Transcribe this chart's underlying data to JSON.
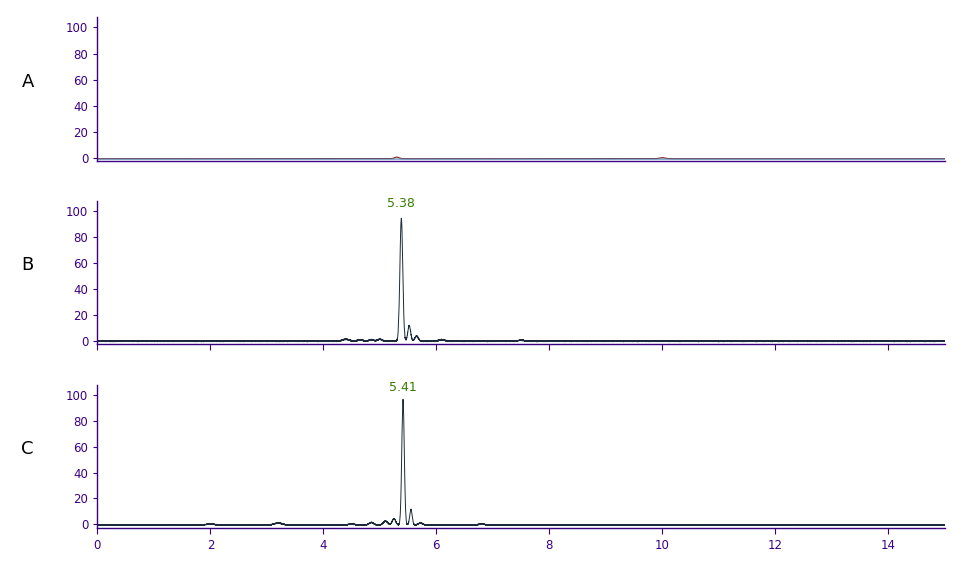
{
  "panel_labels": [
    "A",
    "B",
    "C"
  ],
  "xlim": [
    0,
    15
  ],
  "xticks": [
    0,
    2,
    4,
    6,
    8,
    10,
    12,
    14
  ],
  "ylim_A": [
    -2,
    108
  ],
  "ylim_BC": [
    -3,
    108
  ],
  "yticks_A": [
    0,
    20,
    40,
    60,
    80,
    100
  ],
  "yticks_BC": [
    0,
    20,
    40,
    60,
    80,
    100
  ],
  "peak_B_x": 5.38,
  "peak_B_label": "5.38",
  "peak_C_x": 5.41,
  "peak_C_label": "5.41",
  "peak_B_height": 95,
  "peak_C_height": 97,
  "line_color_A_red": "#8B1A1A",
  "line_color_A_teal": "#4682B4",
  "line_color_BC": "#1C2B3A",
  "axis_color": "#3B0082",
  "tick_color": "#3B0082",
  "label_color": "#000000",
  "peak_label_color": "#3A7A00",
  "background_color": "#ffffff",
  "fig_width": 9.74,
  "fig_height": 5.68,
  "dpi": 100
}
